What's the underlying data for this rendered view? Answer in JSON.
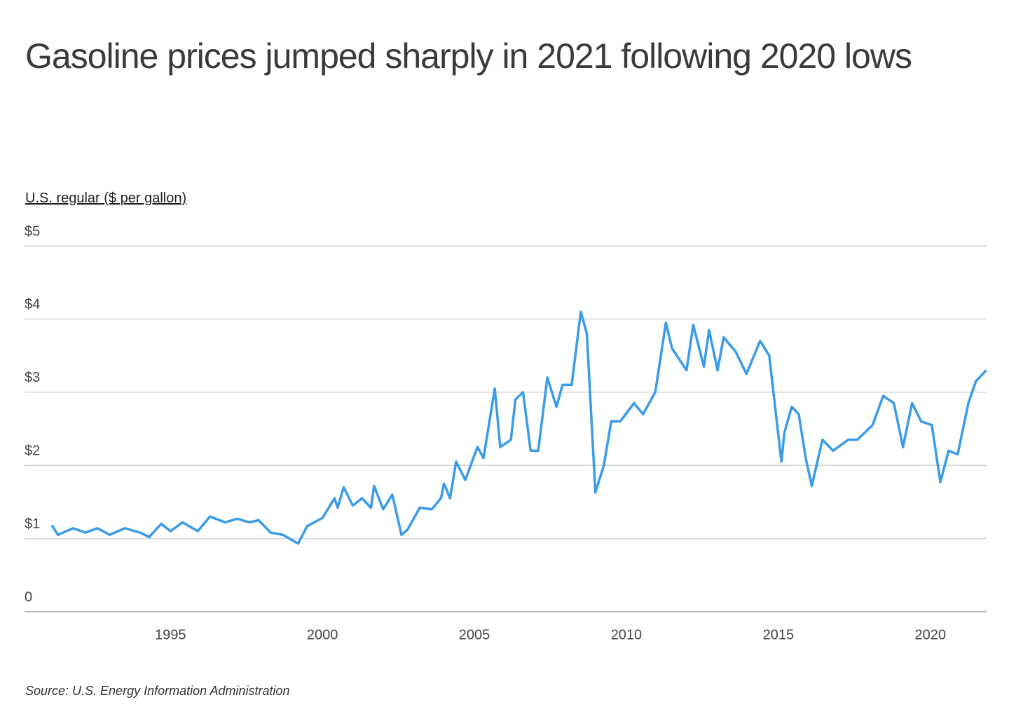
{
  "chart_data": {
    "type": "line",
    "title": "Gasoline prices jumped sharply in 2021 following 2020 lows",
    "y_label": "U.S. regular ($ per gallon)",
    "source": "Source:  U.S. Energy Information Administration",
    "x": [
      1991.1,
      1991.3,
      1991.8,
      1992.2,
      1992.6,
      1993.0,
      1993.5,
      1994.0,
      1994.3,
      1994.7,
      1995.0,
      1995.4,
      1995.9,
      1996.3,
      1996.8,
      1997.2,
      1997.6,
      1997.9,
      1998.3,
      1998.7,
      1999.2,
      1999.5,
      2000.0,
      2000.4,
      2000.5,
      2000.7,
      2001.0,
      2001.3,
      2001.6,
      2001.7,
      2002.0,
      2002.3,
      2002.6,
      2002.8,
      2003.2,
      2003.6,
      2003.9,
      2004.0,
      2004.2,
      2004.4,
      2004.7,
      2005.1,
      2005.3,
      2005.67,
      2005.85,
      2006.2,
      2006.35,
      2006.6,
      2006.85,
      2007.1,
      2007.4,
      2007.7,
      2007.9,
      2008.2,
      2008.5,
      2008.7,
      2008.98,
      2009.26,
      2009.5,
      2009.8,
      2010.25,
      2010.55,
      2010.95,
      2011.3,
      2011.5,
      2011.98,
      2012.2,
      2012.55,
      2012.72,
      2013.0,
      2013.2,
      2013.6,
      2013.95,
      2014.4,
      2014.7,
      2015.1,
      2015.2,
      2015.44,
      2015.67,
      2015.9,
      2016.1,
      2016.45,
      2016.8,
      2017.3,
      2017.6,
      2018.1,
      2018.45,
      2018.8,
      2019.1,
      2019.4,
      2019.7,
      2020.05,
      2020.33,
      2020.6,
      2020.9,
      2021.25,
      2021.5,
      2021.84
    ],
    "series": [
      {
        "name": "U.S. regular",
        "color": "#3a9be8",
        "values": [
          1.18,
          1.05,
          1.14,
          1.08,
          1.14,
          1.05,
          1.14,
          1.08,
          1.02,
          1.2,
          1.1,
          1.22,
          1.1,
          1.3,
          1.22,
          1.27,
          1.22,
          1.25,
          1.08,
          1.05,
          0.93,
          1.17,
          1.28,
          1.55,
          1.42,
          1.7,
          1.45,
          1.55,
          1.42,
          1.72,
          1.4,
          1.6,
          1.05,
          1.12,
          1.42,
          1.4,
          1.55,
          1.75,
          1.55,
          2.05,
          1.8,
          2.25,
          2.1,
          3.05,
          2.25,
          2.35,
          2.9,
          3.0,
          2.2,
          2.2,
          3.2,
          2.8,
          3.1,
          3.1,
          4.1,
          3.8,
          1.63,
          2.0,
          2.6,
          2.6,
          2.85,
          2.7,
          3.0,
          3.95,
          3.6,
          3.3,
          3.92,
          3.35,
          3.85,
          3.3,
          3.75,
          3.55,
          3.25,
          3.7,
          3.5,
          2.05,
          2.45,
          2.8,
          2.7,
          2.1,
          1.72,
          2.35,
          2.2,
          2.35,
          2.35,
          2.55,
          2.95,
          2.85,
          2.25,
          2.85,
          2.6,
          2.55,
          1.77,
          2.2,
          2.15,
          2.85,
          3.15,
          3.3
        ]
      }
    ],
    "xlim": [
      1990.2,
      2021.85
    ],
    "xticks": [
      1995,
      2000,
      2005,
      2010,
      2015,
      2020
    ],
    "ylim": [
      0,
      5
    ],
    "yticks": [
      0,
      {
        "value": 1,
        "label": "$1"
      },
      {
        "value": 2,
        "label": "$2"
      },
      {
        "value": 3,
        "label": "$3"
      },
      {
        "value": 4,
        "label": "$4"
      },
      {
        "value": 5,
        "label": "$5"
      }
    ],
    "grid": true
  }
}
